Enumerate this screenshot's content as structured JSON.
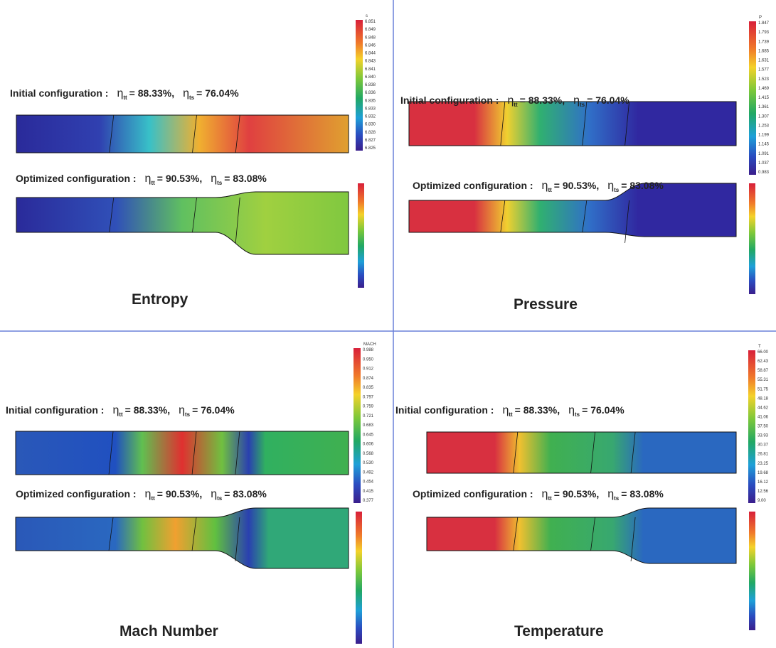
{
  "panels": [
    {
      "title": "Entropy",
      "colorbar": {
        "header": "s",
        "labels": [
          "6.851",
          "6.849",
          "6.848",
          "6.846",
          "6.844",
          "6.843",
          "6.841",
          "6.840",
          "6.838",
          "6.836",
          "6.835",
          "6.833",
          "6.832",
          "6.830",
          "6.828",
          "6.827",
          "6.825"
        ]
      },
      "initial": {
        "label": "Initial configuration :",
        "terms": [
          {
            "symbol": "η",
            "sub": "tt",
            "value": "= 88.33%,"
          },
          {
            "symbol": "η",
            "sub": "ts",
            "value": "= 76.04%"
          }
        ]
      },
      "optimized": {
        "label": "Optimized configuration :",
        "terms": [
          {
            "symbol": "η",
            "sub": "tt",
            "value": "= 90.53%,"
          },
          {
            "symbol": "η",
            "sub": "ts",
            "value": "= 83.08%"
          }
        ]
      }
    },
    {
      "title": "Pressure",
      "colorbar": {
        "header": "P",
        "labels": [
          "1.847",
          "1.793",
          "1.739",
          "1.685",
          "1.631",
          "1.577",
          "1.523",
          "1.469",
          "1.415",
          "1.361",
          "1.307",
          "1.253",
          "1.199",
          "1.145",
          "1.091",
          "1.037",
          "0.983"
        ]
      },
      "initial": {
        "label": "Initial configuration :",
        "terms": [
          {
            "symbol": "η",
            "sub": "tt",
            "value": "= 88.33%,"
          },
          {
            "symbol": "η",
            "sub": "ts",
            "value": "= 76.04%"
          }
        ]
      },
      "optimized": {
        "label": "Optimized configuration :",
        "terms": [
          {
            "symbol": "η",
            "sub": "tt",
            "value": "= 90.53%,"
          },
          {
            "symbol": "η",
            "sub": "ts",
            "value": "= 83.08%"
          }
        ]
      }
    },
    {
      "title": "Mach Number",
      "colorbar": {
        "header": "MACH",
        "labels": [
          "0.988",
          "0.950",
          "0.912",
          "0.874",
          "0.835",
          "0.797",
          "0.759",
          "0.721",
          "0.683",
          "0.645",
          "0.606",
          "0.568",
          "0.530",
          "0.492",
          "0.454",
          "0.415",
          "0.377"
        ]
      },
      "initial": {
        "label": "Initial configuration :",
        "terms": [
          {
            "symbol": "η",
            "sub": "tt",
            "value": "= 88.33%,"
          },
          {
            "symbol": "η",
            "sub": "ts",
            "value": "= 76.04%"
          }
        ]
      },
      "optimized": {
        "label": "Optimized configuration :",
        "terms": [
          {
            "symbol": "η",
            "sub": "tt",
            "value": "= 90.53%,"
          },
          {
            "symbol": "η",
            "sub": "ts",
            "value": "= 83.08%"
          }
        ]
      }
    },
    {
      "title": "Temperature",
      "colorbar": {
        "header": "T",
        "labels": [
          "66.00",
          "62.43",
          "58.87",
          "55.31",
          "51.75",
          "48.18",
          "44.62",
          "41.06",
          "37.50",
          "33.93",
          "30.37",
          "26.81",
          "23.25",
          "19.68",
          "16.12",
          "12.56",
          "9.00"
        ]
      },
      "initial": {
        "label": "Initial configuration :",
        "terms": [
          {
            "symbol": "η",
            "sub": "tt",
            "value": "= 88.33%,"
          },
          {
            "symbol": "η",
            "sub": "ts",
            "value": "= 76.04%"
          }
        ]
      },
      "optimized": {
        "label": "Optimized configuration :",
        "terms": [
          {
            "symbol": "η",
            "sub": "tt",
            "value": "= 90.53%,"
          },
          {
            "symbol": "η",
            "sub": "ts",
            "value": "= 83.08%"
          }
        ]
      }
    }
  ]
}
